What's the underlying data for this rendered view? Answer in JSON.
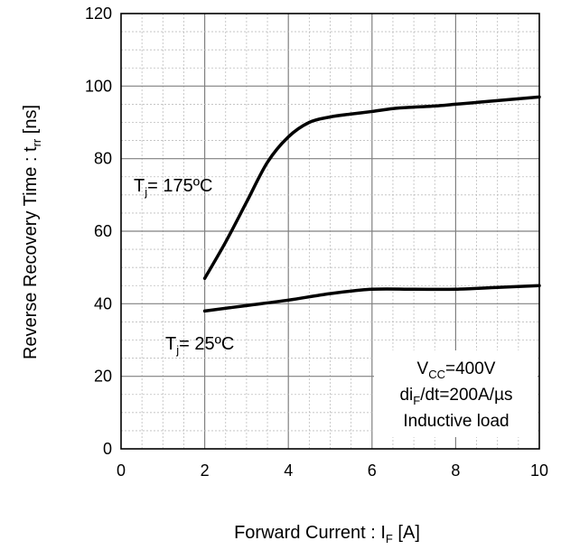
{
  "chart_data": {
    "type": "line",
    "x_axis": {
      "label": "Forward Current : I",
      "label_sub": "F",
      "label_tail": " [A]",
      "range": [
        0,
        10
      ],
      "ticks": [
        "0",
        "2",
        "4",
        "6",
        "8",
        "10"
      ]
    },
    "y_axis": {
      "label": "Reverse Recovery Time : t",
      "label_sub": "rr",
      "label_tail": " [ns]",
      "range": [
        0,
        120
      ],
      "ticks": [
        "0",
        "20",
        "40",
        "60",
        "80",
        "100",
        "120"
      ]
    },
    "grid": true,
    "series": [
      {
        "name": "T",
        "name_sub": "j",
        "name_tail": "= 175ºC",
        "x": [
          2,
          2.5,
          3,
          3.5,
          4,
          4.5,
          5,
          5.5,
          6,
          6.5,
          7,
          7.5,
          8,
          8.5,
          9,
          9.5,
          10
        ],
        "y": [
          47,
          57,
          68,
          79,
          86,
          90,
          91.5,
          92.3,
          93,
          93.8,
          94.2,
          94.5,
          95,
          95.5,
          96,
          96.5,
          97
        ]
      },
      {
        "name": "T",
        "name_sub": "j",
        "name_tail": "= 25ºC",
        "x": [
          2,
          3,
          4,
          5,
          6,
          7,
          8,
          9,
          10
        ],
        "y": [
          38,
          39.5,
          41,
          42.8,
          44,
          44,
          44,
          44.5,
          45
        ]
      }
    ],
    "conditions": [
      {
        "text": "V",
        "sub": "CC",
        "tail": "=400V"
      },
      {
        "text": "di",
        "sub": "F",
        "tail": "/dt=200A/µs"
      },
      {
        "text": "Inductive load",
        "sub": "",
        "tail": ""
      }
    ]
  }
}
